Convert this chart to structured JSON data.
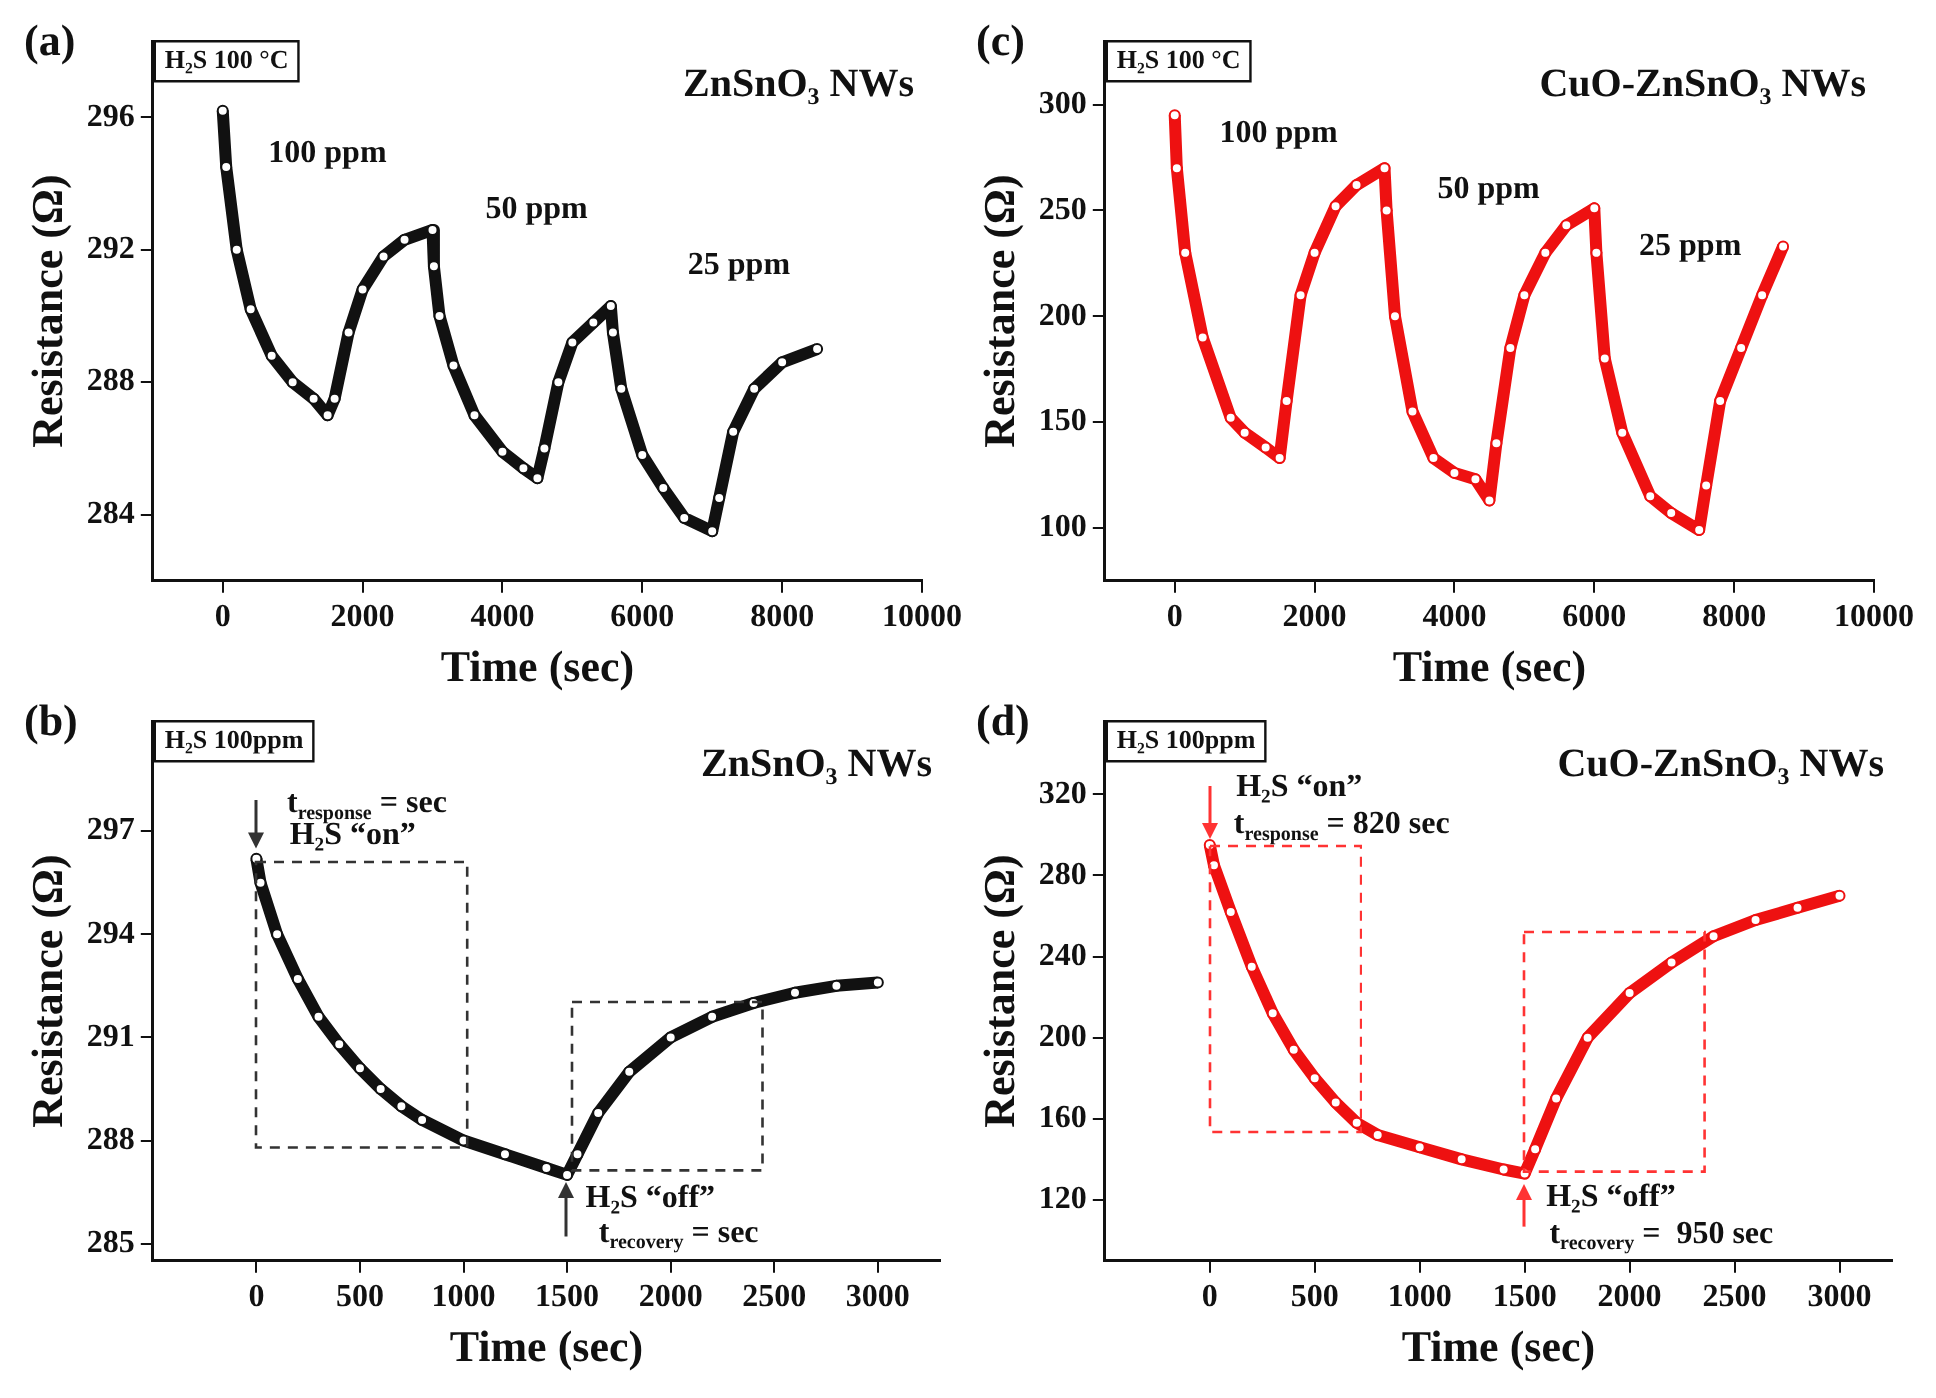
{
  "chart_data": [
    {
      "type": "line",
      "title": "ZnSnO₃ NWs",
      "xlabel": "Time (sec)",
      "ylabel": "Resistance (Ω)",
      "xlim": [
        -1000,
        10000
      ],
      "xticks": [
        0,
        2000,
        4000,
        6000,
        8000,
        10000
      ],
      "ylim": [
        282,
        298.3
      ],
      "yticks": [
        284,
        288,
        292,
        296
      ],
      "grid": false,
      "legend": false,
      "marker": "circle",
      "annotations": [
        "(a)",
        "H₂S 100 °C",
        "100 ppm",
        "50 ppm",
        "25 ppm"
      ],
      "series": [
        {
          "color": "#111111",
          "x": [
            0,
            50,
            200,
            400,
            700,
            1000,
            1300,
            1500,
            1600,
            1800,
            2000,
            2300,
            2600,
            3000,
            3020,
            3100,
            3300,
            3600,
            4000,
            4300,
            4500,
            4600,
            4800,
            5000,
            5300,
            5550,
            5580,
            5700,
            6000,
            6300,
            6600,
            7000,
            7100,
            7300,
            7600,
            8000,
            8500
          ],
          "values": [
            296.2,
            294.5,
            292,
            290.2,
            288.8,
            288,
            287.5,
            287,
            287.5,
            289.5,
            290.8,
            291.8,
            292.3,
            292.6,
            291.5,
            290,
            288.5,
            287,
            285.9,
            285.4,
            285.1,
            286,
            288,
            289.2,
            289.8,
            290.3,
            289.5,
            287.8,
            285.8,
            284.8,
            283.9,
            283.5,
            284.5,
            286.5,
            287.8,
            288.6,
            289
          ]
        }
      ]
    },
    {
      "type": "line",
      "title": "CuO-ZnSnO₃ NWs",
      "xlabel": "Time (sec)",
      "ylabel": "Resistance (Ω)",
      "xlim": [
        -1000,
        10000
      ],
      "xticks": [
        0,
        2000,
        4000,
        6000,
        8000,
        10000
      ],
      "ylim": [
        75,
        330
      ],
      "yticks": [
        100,
        150,
        200,
        250,
        300
      ],
      "grid": false,
      "legend": false,
      "marker": "circle",
      "annotations": [
        "(c)",
        "H₂S 100 °C",
        "100 ppm",
        "50 ppm",
        "25 ppm"
      ],
      "series": [
        {
          "color": "#ee1111",
          "x": [
            0,
            30,
            150,
            400,
            800,
            1000,
            1300,
            1500,
            1600,
            1800,
            2000,
            2300,
            2600,
            3000,
            3030,
            3150,
            3400,
            3700,
            4000,
            4300,
            4500,
            4600,
            4800,
            5000,
            5300,
            5600,
            6000,
            6030,
            6150,
            6400,
            6800,
            7100,
            7500,
            7600,
            7800,
            8100,
            8400,
            8700
          ],
          "values": [
            295,
            270,
            230,
            190,
            152,
            145,
            138,
            133,
            160,
            210,
            230,
            252,
            262,
            270,
            250,
            200,
            155,
            133,
            126,
            123,
            113,
            140,
            185,
            210,
            230,
            243,
            251,
            230,
            180,
            145,
            115,
            107,
            99,
            120,
            160,
            185,
            210,
            233
          ]
        }
      ]
    },
    {
      "type": "line",
      "title": "ZnSnO₃ NWs",
      "xlabel": "Time (sec)",
      "ylabel": "Resistance (Ω)",
      "xlim": [
        -500,
        3300
      ],
      "xticks": [
        0,
        500,
        1000,
        1500,
        2000,
        2500,
        3000
      ],
      "ylim": [
        284.5,
        300.2
      ],
      "yticks": [
        285,
        288,
        291,
        294,
        297
      ],
      "grid": false,
      "legend": false,
      "marker": "circle",
      "annotations": [
        "(b)",
        "H₂S 100ppm",
        "t$_{response}$ = sec",
        "H₂S “on”",
        "H₂S “off”",
        "t$_{recovery}$ = sec"
      ],
      "series": [
        {
          "color": "#111111",
          "x": [
            0,
            20,
            100,
            200,
            300,
            400,
            500,
            600,
            700,
            800,
            1000,
            1200,
            1400,
            1500,
            1550,
            1650,
            1800,
            2000,
            2200,
            2400,
            2600,
            2800,
            3000
          ],
          "values": [
            296.2,
            295.5,
            294,
            292.7,
            291.6,
            290.8,
            290.1,
            289.5,
            289,
            288.6,
            288,
            287.6,
            287.2,
            287,
            287.6,
            288.8,
            290,
            291,
            291.6,
            292,
            292.3,
            292.5,
            292.6
          ]
        }
      ]
    },
    {
      "type": "line",
      "title": "CuO-ZnSnO₃ NWs",
      "xlabel": "Time (sec)",
      "ylabel": "Resistance (Ω)",
      "xlim": [
        -500,
        3250
      ],
      "xticks": [
        0,
        500,
        1000,
        1500,
        2000,
        2500,
        3000
      ],
      "ylim": [
        90,
        356
      ],
      "yticks": [
        120,
        160,
        200,
        240,
        280,
        320
      ],
      "grid": false,
      "legend": false,
      "marker": "circle",
      "annotations": [
        "(d)",
        "H₂S 100ppm",
        "H₂S “on”",
        "t$_{response}$ = 820 sec",
        "H₂S “off”",
        "t$_{recovery}$ =  950 sec"
      ],
      "series": [
        {
          "color": "#ee1111",
          "x": [
            0,
            20,
            100,
            200,
            300,
            400,
            500,
            600,
            700,
            800,
            1000,
            1200,
            1400,
            1500,
            1550,
            1650,
            1800,
            2000,
            2200,
            2400,
            2600,
            2800,
            3000
          ],
          "values": [
            295,
            285,
            262,
            235,
            212,
            194,
            180,
            168,
            158,
            152,
            146,
            140,
            135,
            133,
            145,
            170,
            200,
            222,
            237,
            250,
            258,
            264,
            270
          ]
        }
      ]
    }
  ]
}
